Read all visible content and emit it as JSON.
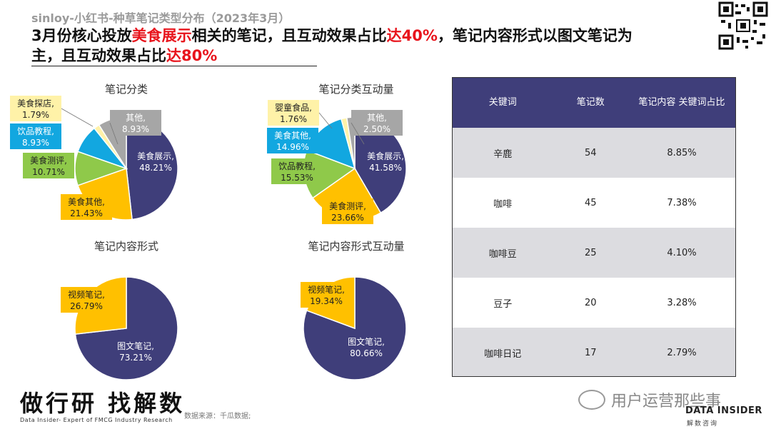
{
  "header": {
    "subtitle": "sinloy-小红书-种草笔记类型分布（2023年3月）",
    "headline_parts": [
      "3月份核心投放",
      "美食展示",
      "相关的笔记，且互动效果占比",
      "达40%",
      "，笔记内容形式以图文笔记为主，且互动效果占比",
      "达80%"
    ]
  },
  "colors": {
    "navy": "#3f3e7a",
    "yellow": "#ffc000",
    "green": "#8fc94a",
    "blue": "#12a7e0",
    "gray": "#a6a6a6",
    "lightyellow": "#fff2a8",
    "red": "#e8141c"
  },
  "chart_data": [
    {
      "type": "pie",
      "title": "笔记分类",
      "slices": [
        {
          "label": "美食展示,",
          "value": 48.21,
          "value_text": "48.21%",
          "color": "#3f3e7a"
        },
        {
          "label": "美食其他,",
          "value": 21.43,
          "value_text": "21.43%",
          "color": "#ffc000"
        },
        {
          "label": "美食测评,",
          "value": 10.71,
          "value_text": "10.71%",
          "color": "#8fc94a"
        },
        {
          "label": "饮品教程,",
          "value": 8.93,
          "value_text": "8.93%",
          "color": "#12a7e0"
        },
        {
          "label": "美食探店,",
          "value": 1.79,
          "value_text": "1.79%",
          "color": "#fff2a8"
        },
        {
          "label": "其他,",
          "value": 8.93,
          "value_text": "8.93%",
          "color": "#a6a6a6"
        }
      ]
    },
    {
      "type": "pie",
      "title": "笔记分类互动量",
      "slices": [
        {
          "label": "美食展示,",
          "value": 41.58,
          "value_text": "41.58%",
          "color": "#3f3e7a"
        },
        {
          "label": "美食测评,",
          "value": 23.66,
          "value_text": "23.66%",
          "color": "#ffc000"
        },
        {
          "label": "饮品教程,",
          "value": 15.53,
          "value_text": "15.53%",
          "color": "#8fc94a"
        },
        {
          "label": "美食其他,",
          "value": 14.96,
          "value_text": "14.96%",
          "color": "#12a7e0"
        },
        {
          "label": "婴童食品,",
          "value": 1.76,
          "value_text": "1.76%",
          "color": "#fff2a8"
        },
        {
          "label": "其他,",
          "value": 2.5,
          "value_text": "2.50%",
          "color": "#a6a6a6"
        }
      ]
    },
    {
      "type": "pie",
      "title": "笔记内容形式",
      "slices": [
        {
          "label": "图文笔记,",
          "value": 73.21,
          "value_text": "73.21%",
          "color": "#3f3e7a"
        },
        {
          "label": "视频笔记,",
          "value": 26.79,
          "value_text": "26.79%",
          "color": "#ffc000"
        }
      ]
    },
    {
      "type": "pie",
      "title": "笔记内容形式互动量",
      "slices": [
        {
          "label": "图文笔记,",
          "value": 80.66,
          "value_text": "80.66%",
          "color": "#3f3e7a"
        },
        {
          "label": "视频笔记,",
          "value": 19.34,
          "value_text": "19.34%",
          "color": "#ffc000"
        }
      ]
    },
    {
      "type": "table",
      "columns": [
        "关键词",
        "笔记数",
        "笔记内容 关键词占比"
      ],
      "rows": [
        [
          "辛鹿",
          "54",
          "8.85%"
        ],
        [
          "咖啡",
          "45",
          "7.38%"
        ],
        [
          "咖啡豆",
          "25",
          "4.10%"
        ],
        [
          "豆子",
          "20",
          "3.28%"
        ],
        [
          "咖啡日记",
          "17",
          "2.79%"
        ]
      ]
    }
  ],
  "footer": {
    "logo": "做行研 找解数",
    "logo_sub": "Data Insider- Expert of FMCG Industry Research",
    "source": "数据来源：千瓜数据;",
    "wechat": "用户运营那些事",
    "di_title": "DATA INSIDER",
    "di_sub": "解数咨询"
  }
}
